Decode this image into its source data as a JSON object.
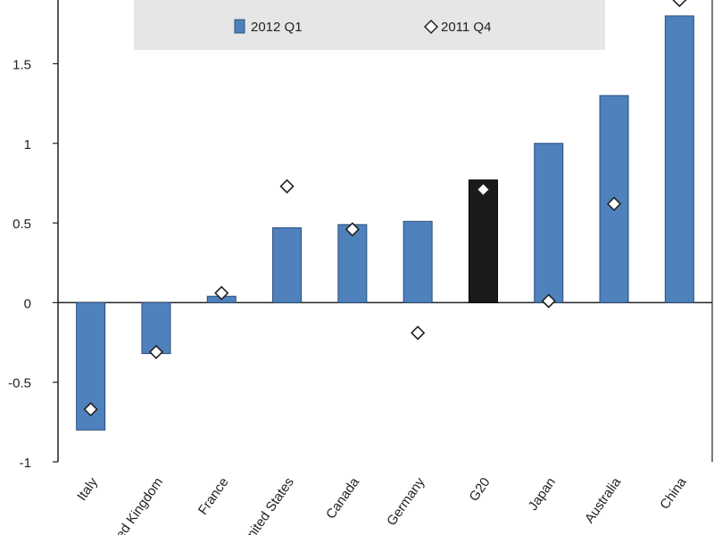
{
  "chart_data": {
    "type": "bar",
    "categories": [
      "Italy",
      "United Kingdom",
      "France",
      "United States",
      "Canada",
      "Germany",
      "G20",
      "Japan",
      "Australia",
      "China"
    ],
    "series": [
      {
        "name": "2012 Q1",
        "kind": "bar",
        "values": [
          -0.8,
          -0.32,
          0.04,
          0.47,
          0.49,
          0.51,
          0.77,
          1.0,
          1.3,
          1.8
        ],
        "color": "#4f81bd",
        "highlight": {
          "category": "G20",
          "color": "#1a1a1a"
        }
      },
      {
        "name": "2011 Q4",
        "kind": "marker",
        "values": [
          -0.67,
          -0.31,
          0.06,
          0.73,
          0.46,
          -0.19,
          0.71,
          0.01,
          0.62,
          1.9
        ],
        "marker": "diamond"
      }
    ],
    "yticks": [
      -1,
      -0.5,
      0,
      0.5,
      1,
      1.5
    ],
    "ytick_labels": [
      "-1",
      "-0.5",
      "0",
      "0.5",
      "1",
      "1.5"
    ],
    "ylim": [
      -1,
      1.9
    ],
    "title": "",
    "xlabel": "",
    "ylabel": "",
    "grid": false,
    "legend": {
      "placement": "top-center",
      "background": "#e6e6e6"
    }
  }
}
